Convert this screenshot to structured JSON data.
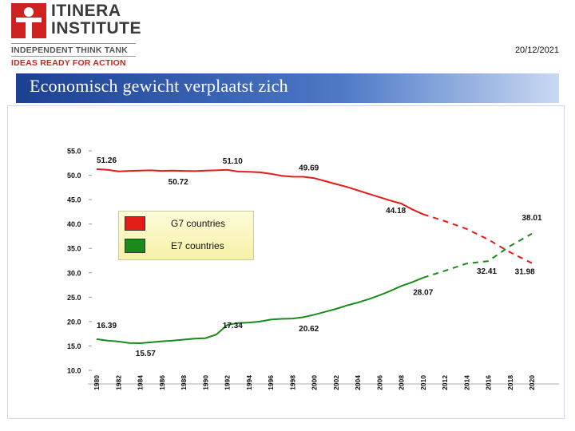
{
  "header": {
    "logo_line1": "ITINERA",
    "logo_line2": "INSTITUTE",
    "logo_tagline1": "INDEPENDENT THINK TANK",
    "logo_tagline2": "IDEAS READY FOR ACTION",
    "date": "20/12/2021"
  },
  "title": "Economisch gewicht verplaatst zich",
  "colors": {
    "g7": "#e41b17",
    "e7": "#1a8a1a",
    "title_bar": "#1c3f92",
    "logo_red": "#cc2222"
  },
  "chart_data": {
    "type": "line",
    "ylim": [
      10,
      55
    ],
    "xlim": [
      1980,
      2020
    ],
    "y_ticks": [
      "10.0",
      "15.0",
      "20.0",
      "25.0",
      "30.0",
      "35.0",
      "40.0",
      "45.0",
      "50.0",
      "55.0"
    ],
    "x_ticks": [
      "1980",
      "1982",
      "1984",
      "1986",
      "1988",
      "1990",
      "1992",
      "1994",
      "1996",
      "1998",
      "2000",
      "2002",
      "2004",
      "2006",
      "2008",
      "2010",
      "2012",
      "2014",
      "2016",
      "2018",
      "2020"
    ],
    "legend": [
      {
        "label": "G7 countries",
        "color": "#e41b17"
      },
      {
        "label": "E7 countries",
        "color": "#1a8a1a"
      }
    ],
    "series": [
      {
        "name": "G7 countries",
        "color": "#e41b17",
        "actual": [
          [
            1980,
            51.26
          ],
          [
            1981,
            51.1
          ],
          [
            1982,
            50.8
          ],
          [
            1983,
            50.9
          ],
          [
            1984,
            50.95
          ],
          [
            1985,
            51.0
          ],
          [
            1986,
            50.9
          ],
          [
            1987,
            50.95
          ],
          [
            1988,
            50.9
          ],
          [
            1989,
            50.85
          ],
          [
            1990,
            50.95
          ],
          [
            1991,
            51.0
          ],
          [
            1992,
            51.1
          ],
          [
            1993,
            50.75
          ],
          [
            1994,
            50.72
          ],
          [
            1995,
            50.6
          ],
          [
            1996,
            50.3
          ],
          [
            1997,
            49.9
          ],
          [
            1998,
            49.7
          ],
          [
            1999,
            49.69
          ],
          [
            2000,
            49.4
          ],
          [
            2001,
            48.8
          ],
          [
            2002,
            48.2
          ],
          [
            2003,
            47.6
          ],
          [
            2004,
            46.9
          ],
          [
            2005,
            46.2
          ],
          [
            2006,
            45.5
          ],
          [
            2007,
            44.8
          ],
          [
            2008,
            44.18
          ],
          [
            2009,
            43.0
          ],
          [
            2010,
            42.0
          ]
        ],
        "projected": [
          [
            2010,
            42.0
          ],
          [
            2012,
            40.6
          ],
          [
            2014,
            39.0
          ],
          [
            2016,
            36.8
          ],
          [
            2018,
            34.2
          ],
          [
            2020,
            31.98
          ]
        ],
        "labels": [
          {
            "text": "51.26",
            "x": 1980,
            "y": 51.26
          },
          {
            "text": "50.72",
            "x": 1987.5,
            "y": 50.72
          },
          {
            "text": "51.10",
            "x": 1992.5,
            "y": 51.1
          },
          {
            "text": "49.69",
            "x": 1999.5,
            "y": 49.69
          },
          {
            "text": "44.18",
            "x": 2007.5,
            "y": 44.18
          },
          {
            "text": "31.98",
            "x": 2019.5,
            "y": 31.98
          }
        ]
      },
      {
        "name": "E7 countries",
        "color": "#1a8a1a",
        "actual": [
          [
            1980,
            16.39
          ],
          [
            1981,
            16.1
          ],
          [
            1982,
            15.9
          ],
          [
            1983,
            15.6
          ],
          [
            1984,
            15.57
          ],
          [
            1985,
            15.75
          ],
          [
            1986,
            15.95
          ],
          [
            1987,
            16.1
          ],
          [
            1988,
            16.3
          ],
          [
            1989,
            16.5
          ],
          [
            1990,
            16.6
          ],
          [
            1991,
            17.34
          ],
          [
            1992,
            19.3
          ],
          [
            1993,
            19.7
          ],
          [
            1994,
            19.8
          ],
          [
            1995,
            20.0
          ],
          [
            1996,
            20.4
          ],
          [
            1997,
            20.55
          ],
          [
            1998,
            20.62
          ],
          [
            1999,
            20.9
          ],
          [
            2000,
            21.4
          ],
          [
            2001,
            22.0
          ],
          [
            2002,
            22.6
          ],
          [
            2003,
            23.3
          ],
          [
            2004,
            23.9
          ],
          [
            2005,
            24.6
          ],
          [
            2006,
            25.4
          ],
          [
            2007,
            26.3
          ],
          [
            2008,
            27.3
          ],
          [
            2009,
            28.07
          ],
          [
            2010,
            29.0
          ]
        ],
        "projected": [
          [
            2010,
            29.0
          ],
          [
            2012,
            30.4
          ],
          [
            2014,
            31.9
          ],
          [
            2016,
            32.41
          ],
          [
            2018,
            35.5
          ],
          [
            2020,
            38.01
          ]
        ],
        "labels": [
          {
            "text": "16.39",
            "x": 1980,
            "y": 16.39
          },
          {
            "text": "15.57",
            "x": 1984.5,
            "y": 15.57
          },
          {
            "text": "17.34",
            "x": 1992.5,
            "y": 17.34
          },
          {
            "text": "20.62",
            "x": 1999.5,
            "y": 20.62
          },
          {
            "text": "28.07",
            "x": 2010,
            "y": 28.07
          },
          {
            "text": "32.41",
            "x": 2016,
            "y": 32.41
          },
          {
            "text": "38.01",
            "x": 2020,
            "y": 38.01
          }
        ]
      }
    ]
  }
}
